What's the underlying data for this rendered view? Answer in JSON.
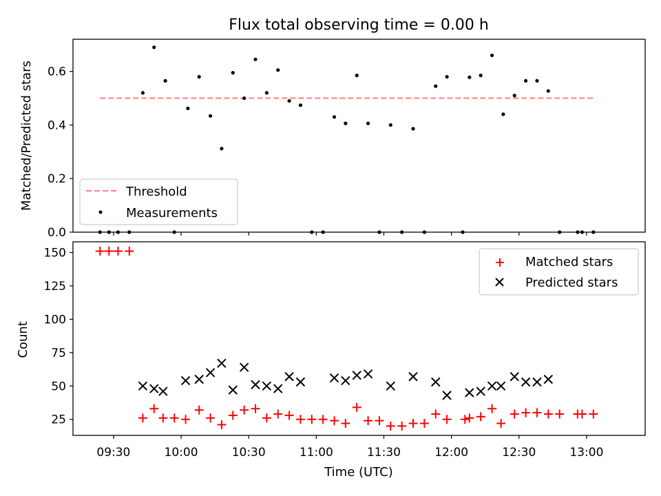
{
  "chart_data": [
    {
      "type": "scatter",
      "title": "Flux total observing time = 0.00 h",
      "ylabel": "Matched/Predicted stars",
      "ylim": [
        0,
        0.72
      ],
      "yticks": [
        "0.0",
        "0.2",
        "0.4",
        "0.6"
      ],
      "grid": false,
      "legend_position": "lower-left",
      "series": [
        {
          "name": "Threshold",
          "kind": "dashed-line",
          "color": "#ff7f7f",
          "x": [
            "09:24",
            "13:03"
          ],
          "y": [
            0.5,
            0.5
          ]
        },
        {
          "name": "Measurements",
          "kind": "dot",
          "color": "#000000",
          "x": [
            "09:24",
            "09:28",
            "09:32",
            "09:37",
            "09:43",
            "09:48",
            "09:53",
            "09:57",
            "10:03",
            "10:08",
            "10:13",
            "10:18",
            "10:23",
            "10:28",
            "10:33",
            "10:38",
            "10:43",
            "10:48",
            "10:53",
            "10:58",
            "11:03",
            "11:08",
            "11:13",
            "11:18",
            "11:23",
            "11:28",
            "11:33",
            "11:38",
            "11:43",
            "11:48",
            "11:53",
            "11:58",
            "12:05",
            "12:08",
            "12:13",
            "12:18",
            "12:23",
            "12:28",
            "12:33",
            "12:38",
            "12:43",
            "12:48",
            "12:56",
            "12:58",
            "13:03"
          ],
          "y": [
            0,
            0,
            0,
            0,
            0.52,
            0.69,
            0.565,
            0,
            0.462,
            0.58,
            0.434,
            0.312,
            0.595,
            0.5,
            0.645,
            0.52,
            0.605,
            0.49,
            0.474,
            0,
            0,
            0.43,
            0.406,
            0.585,
            0.406,
            0,
            0.4,
            0,
            0.386,
            0,
            0.545,
            0.58,
            0,
            0.578,
            0.585,
            0.66,
            0.44,
            0.51,
            0.565,
            0.565,
            0.527,
            0,
            0,
            0,
            0
          ]
        }
      ]
    },
    {
      "type": "scatter",
      "xlabel": "Time (UTC)",
      "ylabel": "Count",
      "ylim": [
        13,
        158
      ],
      "yticks": [
        "25",
        "50",
        "75",
        "100",
        "125",
        "150"
      ],
      "xticks": [
        "09:30",
        "10:00",
        "10:30",
        "11:00",
        "11:30",
        "12:00",
        "12:30",
        "13:00"
      ],
      "xlim": [
        "09:12",
        "13:26"
      ],
      "grid": false,
      "legend_position": "upper-right",
      "series": [
        {
          "name": "Matched stars",
          "marker": "plus",
          "color": "#ff0000",
          "x": [
            "09:24",
            "09:28",
            "09:32",
            "09:37",
            "09:43",
            "09:48",
            "09:52",
            "09:57",
            "10:02",
            "10:08",
            "10:13",
            "10:18",
            "10:23",
            "10:28",
            "10:33",
            "10:38",
            "10:43",
            "10:48",
            "10:53",
            "10:58",
            "11:03",
            "11:08",
            "11:13",
            "11:18",
            "11:23",
            "11:28",
            "11:33",
            "11:38",
            "11:43",
            "11:48",
            "11:53",
            "11:58",
            "12:06",
            "12:08",
            "12:13",
            "12:18",
            "12:22",
            "12:28",
            "12:33",
            "12:38",
            "12:43",
            "12:48",
            "12:56",
            "12:58",
            "13:03"
          ],
          "y": [
            151,
            151,
            151,
            151,
            26,
            33,
            26,
            26,
            25,
            32,
            26,
            21,
            28,
            32,
            33,
            26,
            29,
            28,
            25,
            25,
            25,
            24,
            22,
            34,
            24,
            24,
            20,
            20,
            22,
            22,
            29,
            25,
            25,
            26,
            27,
            33,
            22,
            29,
            30,
            30,
            29,
            29,
            29,
            29,
            29
          ]
        },
        {
          "name": "Predicted stars",
          "marker": "x",
          "color": "#000000",
          "x": [
            "09:43",
            "09:48",
            "09:52",
            "10:02",
            "10:08",
            "10:13",
            "10:18",
            "10:23",
            "10:28",
            "10:33",
            "10:38",
            "10:43",
            "10:48",
            "10:53",
            "11:08",
            "11:13",
            "11:18",
            "11:23",
            "11:33",
            "11:43",
            "11:53",
            "11:58",
            "12:08",
            "12:13",
            "12:18",
            "12:22",
            "12:28",
            "12:33",
            "12:38",
            "12:43"
          ],
          "y": [
            50,
            48,
            46,
            54,
            55,
            60,
            67,
            47,
            64,
            51,
            50,
            48,
            57,
            53,
            56,
            54,
            58,
            59,
            50,
            57,
            53,
            43,
            45,
            46,
            50,
            50,
            57,
            53,
            53,
            55
          ]
        }
      ]
    }
  ]
}
